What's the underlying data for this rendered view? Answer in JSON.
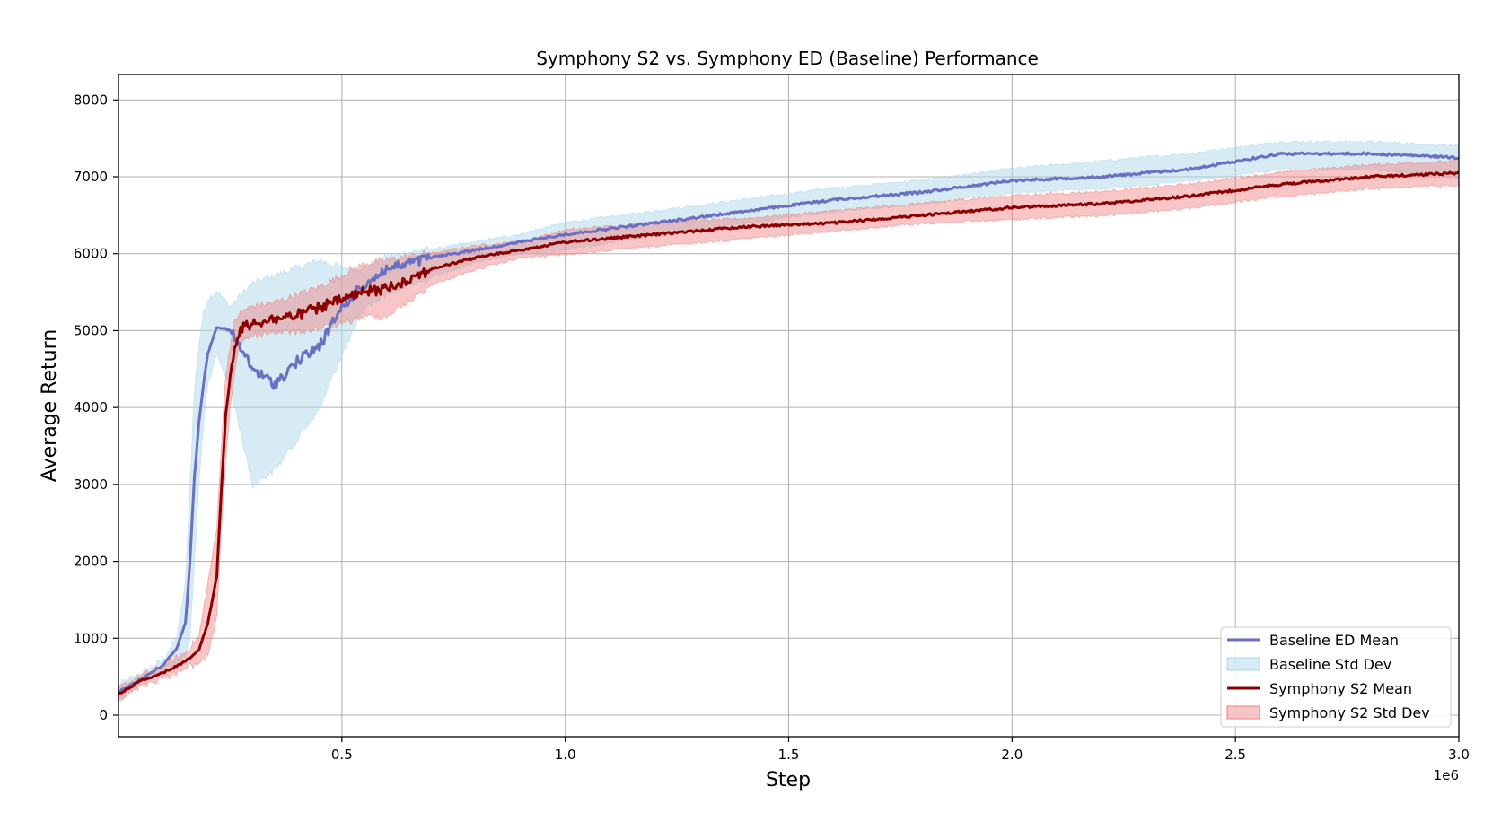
{
  "chart_data": {
    "type": "line",
    "title": "Symphony S2 vs. Symphony ED (Baseline) Performance",
    "xlabel": "Step",
    "ylabel": "Average Return",
    "x_offset_label": "1e6",
    "xlim": [
      0,
      3.0
    ],
    "ylim": [
      -280,
      8330
    ],
    "x_ticks": [
      0.5,
      1.0,
      1.5,
      2.0,
      2.5,
      3.0
    ],
    "x_tick_labels": [
      "0.5",
      "1.0",
      "1.5",
      "2.0",
      "2.5",
      "3.0"
    ],
    "y_ticks": [
      0,
      1000,
      2000,
      3000,
      4000,
      5000,
      6000,
      7000,
      8000
    ],
    "y_tick_labels": [
      "0",
      "1000",
      "2000",
      "3000",
      "4000",
      "5000",
      "6000",
      "7000",
      "8000"
    ],
    "grid": true,
    "legend_position": "lower-right",
    "colors": {
      "baseline_mean": "#6a6fc4",
      "baseline_std": "#add8ea",
      "s2_mean": "#8b0000",
      "s2_std": "#f08080"
    },
    "series": [
      {
        "name": "Baseline ED Mean",
        "kind": "mean",
        "color_key": "baseline_mean",
        "x": [
          0.0,
          0.05,
          0.1,
          0.13,
          0.15,
          0.16,
          0.17,
          0.18,
          0.19,
          0.2,
          0.22,
          0.25,
          0.3,
          0.35,
          0.4,
          0.45,
          0.5,
          0.55,
          0.6,
          0.7,
          0.8,
          0.9,
          1.0,
          1.2,
          1.4,
          1.6,
          1.8,
          2.0,
          2.2,
          2.4,
          2.6,
          2.8,
          3.0
        ],
        "y": [
          300,
          470,
          650,
          870,
          1200,
          2000,
          3100,
          3800,
          4300,
          4700,
          5050,
          5000,
          4500,
          4300,
          4600,
          4800,
          5300,
          5600,
          5800,
          5950,
          6050,
          6150,
          6250,
          6400,
          6550,
          6700,
          6800,
          6950,
          7000,
          7100,
          7300,
          7300,
          7250
        ]
      },
      {
        "name": "Baseline Std Dev",
        "kind": "band",
        "color_key": "baseline_std",
        "x": [
          0.0,
          0.05,
          0.1,
          0.13,
          0.15,
          0.16,
          0.17,
          0.18,
          0.19,
          0.2,
          0.22,
          0.25,
          0.3,
          0.35,
          0.4,
          0.45,
          0.5,
          0.55,
          0.6,
          0.7,
          0.8,
          0.9,
          1.0,
          1.2,
          1.4,
          1.6,
          1.8,
          2.0,
          2.2,
          2.4,
          2.6,
          2.8,
          3.0
        ],
        "low": [
          220,
          420,
          600,
          700,
          800,
          1000,
          2000,
          3000,
          3800,
          4300,
          4700,
          4300,
          3000,
          3200,
          3600,
          4000,
          4700,
          5300,
          5500,
          5700,
          5900,
          6000,
          6050,
          6250,
          6400,
          6550,
          6650,
          6800,
          6850,
          6950,
          7100,
          7100,
          7000
        ],
        "high": [
          380,
          520,
          700,
          1000,
          1700,
          3000,
          4200,
          4800,
          5200,
          5400,
          5500,
          5300,
          5600,
          5700,
          5800,
          5900,
          5800,
          5800,
          5950,
          6050,
          6150,
          6250,
          6400,
          6550,
          6700,
          6850,
          6950,
          7100,
          7200,
          7300,
          7450,
          7450,
          7400
        ]
      },
      {
        "name": "Symphony S2 Mean",
        "kind": "mean",
        "color_key": "s2_mean",
        "x": [
          0.0,
          0.05,
          0.1,
          0.15,
          0.18,
          0.2,
          0.22,
          0.23,
          0.24,
          0.25,
          0.26,
          0.27,
          0.28,
          0.3,
          0.35,
          0.4,
          0.45,
          0.5,
          0.55,
          0.6,
          0.7,
          0.8,
          0.9,
          1.0,
          1.2,
          1.4,
          1.6,
          1.8,
          2.0,
          2.2,
          2.4,
          2.6,
          2.8,
          3.0
        ],
        "y": [
          270,
          450,
          550,
          700,
          850,
          1200,
          1800,
          2900,
          3900,
          4400,
          4800,
          4950,
          5050,
          5100,
          5150,
          5200,
          5300,
          5400,
          5500,
          5550,
          5800,
          5950,
          6050,
          6150,
          6250,
          6350,
          6400,
          6500,
          6600,
          6650,
          6750,
          6900,
          7000,
          7050
        ]
      },
      {
        "name": "Symphony S2 Std Dev",
        "kind": "band",
        "color_key": "s2_std",
        "x": [
          0.0,
          0.05,
          0.1,
          0.15,
          0.18,
          0.2,
          0.22,
          0.23,
          0.24,
          0.25,
          0.26,
          0.27,
          0.28,
          0.3,
          0.35,
          0.4,
          0.45,
          0.5,
          0.55,
          0.6,
          0.7,
          0.8,
          0.9,
          1.0,
          1.2,
          1.4,
          1.6,
          1.8,
          2.0,
          2.2,
          2.4,
          2.6,
          2.8,
          3.0
        ],
        "low": [
          220,
          400,
          500,
          620,
          700,
          800,
          1300,
          2400,
          3300,
          4000,
          4500,
          4800,
          4900,
          4950,
          5000,
          5000,
          5050,
          5100,
          5200,
          5200,
          5600,
          5800,
          5950,
          6000,
          6100,
          6200,
          6300,
          6400,
          6450,
          6500,
          6600,
          6750,
          6850,
          6900
        ],
        "high": [
          330,
          500,
          620,
          800,
          1000,
          1700,
          2400,
          3500,
          4400,
          4800,
          5100,
          5200,
          5250,
          5300,
          5350,
          5450,
          5550,
          5700,
          5850,
          5900,
          6000,
          6100,
          6150,
          6300,
          6400,
          6450,
          6550,
          6650,
          6750,
          6800,
          6900,
          7050,
          7150,
          7200
        ]
      }
    ]
  }
}
